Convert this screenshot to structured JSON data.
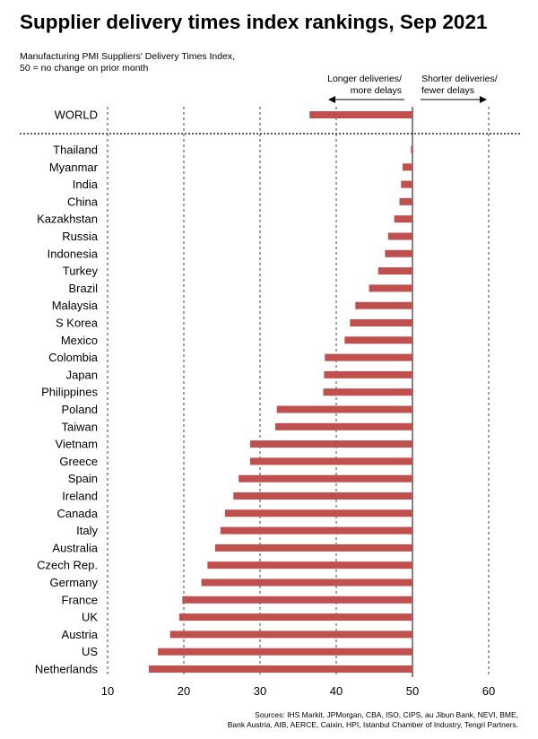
{
  "title": "Supplier delivery times index rankings, Sep 2021",
  "subtitle_lines": [
    "Manufacturing PMI Suppliers' Delivery Times Index,",
    "50 = no change on prior month"
  ],
  "sources_lines": [
    "Sources: IHS Markit, JPMorgan, CBA, ISO, CIPS, au Jibun Bank, NEVI, BME,",
    "Bank Austria, AIB, AERCE, Caixin, HPI, Istanbul Chamber of Industry, Tengri Partners."
  ],
  "annotations": {
    "left_line1": "Longer deliveries/",
    "left_line2": "more delays",
    "right_line1": "Shorter deliveries/",
    "right_line2": "fewer delays"
  },
  "colors": {
    "bar": "#c0504d",
    "text": "#000000",
    "grid": "#333333"
  },
  "chart_data": {
    "type": "bar",
    "orientation": "horizontal",
    "baseline": 50,
    "xlim": [
      10,
      60
    ],
    "xticks": [
      10,
      20,
      30,
      40,
      50,
      60
    ],
    "grid": "vertical dotted at ticks",
    "world": {
      "label": "WORLD",
      "value": 36.5
    },
    "categories": [
      "Thailand",
      "Myanmar",
      "India",
      "China",
      "Kazakhstan",
      "Russia",
      "Indonesia",
      "Turkey",
      "Brazil",
      "Malaysia",
      "S Korea",
      "Mexico",
      "Colombia",
      "Japan",
      "Philippines",
      "Poland",
      "Taiwan",
      "Vietnam",
      "Greece",
      "Spain",
      "Ireland",
      "Canada",
      "Italy",
      "Australia",
      "Czech Rep.",
      "Germany",
      "France",
      "UK",
      "Austria",
      "US",
      "Netherlands"
    ],
    "values": [
      49.8,
      48.7,
      48.5,
      48.3,
      47.6,
      46.8,
      46.4,
      45.5,
      44.3,
      42.5,
      41.8,
      41.1,
      38.5,
      38.4,
      38.3,
      32.2,
      32.0,
      28.7,
      28.7,
      27.2,
      26.5,
      25.4,
      24.8,
      24.1,
      23.1,
      22.3,
      19.8,
      19.4,
      18.2,
      16.6,
      15.4
    ]
  }
}
